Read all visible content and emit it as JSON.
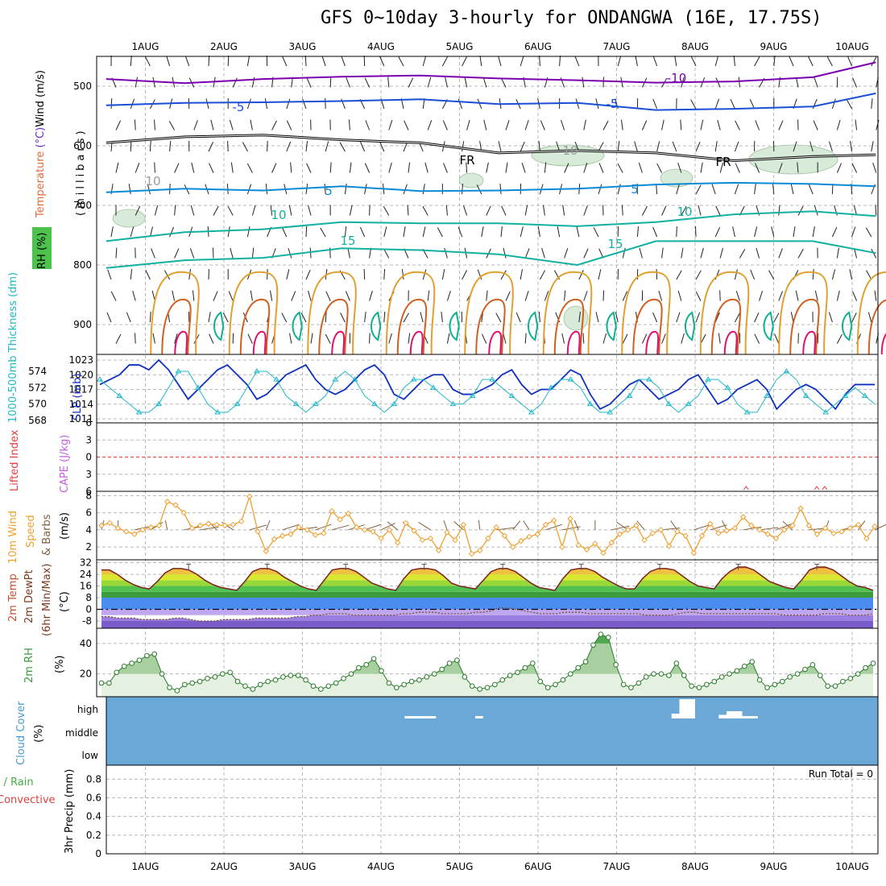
{
  "title": "GFS 0~10day 3-hourly for ONDANGWA (16E, 17.75S)",
  "colors": {
    "wind": "#000000",
    "temperature_neg": "#7a00b0",
    "temperature_blue": "#1a4fd6",
    "temperature_cyan": "#0d8ad6",
    "temperature_teal": "#12b0a0",
    "freezing": "#000000",
    "warm_orange": "#e0a030",
    "warm_dark": "#d06020",
    "hot": "#e01070",
    "slp": "#1030c0",
    "thickness": "#20b8c8",
    "lifted_index": "#e04040",
    "cape": "#c060e0",
    "wind10": "#f0a030",
    "barb10": "#806040",
    "rh2m": "#3aa03a",
    "cloud": "#6aa8d8",
    "precip": "#40b040"
  },
  "chart_data": [
    {
      "type": "line",
      "panel": "upper-air",
      "title": "GFS 0~10day 3-hourly for ONDANGWA (16E, 17.75S)",
      "x_ticks": [
        "1AUG",
        "2AUG",
        "3AUG",
        "4AUG",
        "5AUG",
        "6AUG",
        "7AUG",
        "8AUG",
        "9AUG",
        "10AUG"
      ],
      "xlim_days": [
        0.5,
        10.3
      ],
      "ylabel_parts": [
        "RH (%)",
        "Temperature (°C)",
        "Wind (m/s)"
      ],
      "ylabel_units": "(millibars)",
      "yticks": [
        500,
        600,
        700,
        800,
        900
      ],
      "ylim": [
        450,
        950
      ],
      "contour_labels": [
        "-10",
        "-5",
        "-5",
        "FR",
        "FR",
        "5",
        "5",
        "10",
        "10",
        "15",
        "15",
        "10",
        "10"
      ],
      "series": [
        {
          "name": "-10",
          "values": [
            [
              0.5,
              488
            ],
            [
              1.5,
              495
            ],
            [
              2.5,
              488
            ],
            [
              3.5,
              484
            ],
            [
              4.5,
              482
            ],
            [
              5.5,
              487
            ],
            [
              6.5,
              490
            ],
            [
              7.5,
              494
            ],
            [
              8.5,
              492
            ],
            [
              9.5,
              485
            ],
            [
              10.3,
              460
            ]
          ]
        },
        {
          "name": "-5",
          "values": [
            [
              0.5,
              532
            ],
            [
              1.5,
              528
            ],
            [
              2.5,
              527
            ],
            [
              3.5,
              525
            ],
            [
              4.5,
              522
            ],
            [
              5.5,
              530
            ],
            [
              6.5,
              528
            ],
            [
              7.5,
              540
            ],
            [
              8.5,
              538
            ],
            [
              9.5,
              534
            ],
            [
              10.3,
              512
            ]
          ]
        },
        {
          "name": "FR",
          "values": [
            [
              0.5,
              595
            ],
            [
              1.5,
              585
            ],
            [
              2.5,
              582
            ],
            [
              3.5,
              590
            ],
            [
              4.5,
              595
            ],
            [
              5.5,
              612
            ],
            [
              6.5,
              608
            ],
            [
              7.5,
              612
            ],
            [
              8.5,
              625
            ],
            [
              9.5,
              618
            ],
            [
              10.3,
              615
            ]
          ]
        },
        {
          "name": "5",
          "values": [
            [
              0.5,
              678
            ],
            [
              1.5,
              672
            ],
            [
              2.5,
              675
            ],
            [
              3.5,
              668
            ],
            [
              4.5,
              676
            ],
            [
              5.5,
              675
            ],
            [
              6.5,
              672
            ],
            [
              7.5,
              665
            ],
            [
              8.5,
              662
            ],
            [
              9.5,
              664
            ],
            [
              10.3,
              668
            ]
          ]
        },
        {
          "name": "10",
          "values": [
            [
              0.5,
              760
            ],
            [
              1.5,
              745
            ],
            [
              2.5,
              740
            ],
            [
              3.5,
              728
            ],
            [
              4.5,
              730
            ],
            [
              5.5,
              730
            ],
            [
              6.5,
              735
            ],
            [
              7.5,
              728
            ],
            [
              8.5,
              715
            ],
            [
              9.5,
              710
            ],
            [
              10.3,
              718
            ]
          ]
        },
        {
          "name": "15",
          "values": [
            [
              0.5,
              805
            ],
            [
              1.5,
              792
            ],
            [
              2.5,
              788
            ],
            [
              3.5,
              772
            ],
            [
              4.5,
              775
            ],
            [
              5.5,
              782
            ],
            [
              6.5,
              800
            ],
            [
              7.5,
              760
            ],
            [
              8.5,
              760
            ],
            [
              9.5,
              760
            ],
            [
              10.3,
              780
            ]
          ]
        }
      ]
    },
    {
      "type": "line",
      "panel": "slp-thickness",
      "ylabel_left": "1000-500mb Thickness (dm)",
      "ylabel_right": "SLP (mb)",
      "left_ticks": [
        568,
        570,
        572,
        574
      ],
      "right_ticks": [
        1011,
        1014,
        1017,
        1020,
        1023
      ],
      "series": [
        {
          "name": "SLP (mb)",
          "values": [
            1018,
            1019,
            1020,
            1022,
            1022,
            1021,
            1023,
            1021,
            1018,
            1015,
            1017,
            1019,
            1021,
            1022,
            1020,
            1018,
            1015,
            1016,
            1018,
            1020,
            1021,
            1022,
            1019,
            1017,
            1016,
            1017,
            1019,
            1021,
            1022,
            1020,
            1016,
            1015,
            1017,
            1019,
            1020,
            1020,
            1017,
            1016,
            1016,
            1017,
            1018,
            1020,
            1021,
            1018,
            1016,
            1017,
            1017,
            1019,
            1021,
            1020,
            1016,
            1013,
            1014,
            1016,
            1018,
            1019,
            1017,
            1015,
            1016,
            1017,
            1019,
            1020,
            1017,
            1014,
            1015,
            1017,
            1018,
            1019,
            1017,
            1013,
            1015,
            1017,
            1018,
            1017,
            1015,
            1013,
            1016,
            1018,
            1018,
            1018
          ]
        },
        {
          "name": "1000-500mb Thickness (dm)",
          "values": [
            573,
            572,
            571,
            570,
            569,
            569,
            570,
            572,
            574,
            574,
            572,
            570,
            569,
            569,
            570,
            572,
            574,
            574,
            573,
            571,
            570,
            569,
            570,
            571,
            573,
            574,
            573,
            571,
            570,
            569,
            570,
            572,
            573,
            573,
            572,
            571,
            570,
            570,
            571,
            573,
            573,
            572,
            571,
            570,
            569,
            570,
            572,
            573,
            573,
            572,
            570,
            569,
            569,
            570,
            571,
            573,
            573,
            572,
            570,
            569,
            570,
            571,
            573,
            573,
            572,
            570,
            569,
            569,
            571,
            573,
            574,
            573,
            571,
            570,
            569,
            570,
            571,
            572,
            571,
            570
          ]
        }
      ]
    },
    {
      "type": "line",
      "panel": "lifted-index-cape",
      "ylabel_left": "Lifted Index",
      "ylabel_right": "CAPE (J/kg)",
      "yticks": [
        -6,
        -3,
        0,
        3,
        6
      ],
      "ytick_labels": [
        "6",
        "3",
        "0",
        "3",
        "6"
      ],
      "series": [
        {
          "name": "CAPE (J/kg)",
          "values": [
            [
              8.6,
              1
            ],
            [
              9.5,
              1
            ],
            [
              9.6,
              1
            ]
          ]
        }
      ]
    },
    {
      "type": "line",
      "panel": "wind10m",
      "ylabel": "10m Wind Speed & Barbs (m/s)",
      "yticks": [
        2,
        4,
        6,
        8
      ],
      "ylim": [
        0.5,
        8.5
      ],
      "series": [
        {
          "name": "10m Wind Speed",
          "values": [
            4.5,
            4.8,
            4.2,
            3.8,
            3.5,
            4.0,
            4.3,
            4.5,
            7.3,
            6.9,
            6.0,
            4.2,
            4.5,
            4.7,
            4.6,
            4.5,
            4.6,
            5.0,
            7.9,
            3.8,
            1.5,
            2.9,
            3.3,
            3.5,
            4.3,
            4.0,
            3.4,
            3.6,
            6.2,
            5.2,
            5.9,
            4.3,
            4.0,
            3.8,
            3.0,
            4.0,
            2.5,
            4.8,
            3.9,
            2.8,
            3.0,
            1.6,
            3.7,
            2.8,
            4.6,
            1.2,
            1.6,
            3.0,
            4.3,
            3.3,
            2.0,
            2.7,
            3.2,
            3.5,
            4.6,
            5.1,
            2.0,
            5.3,
            2.2,
            1.7,
            2.4,
            1.3,
            2.5,
            3.5,
            4.0,
            4.5,
            2.8,
            3.6,
            4.0,
            2.1,
            3.8,
            3.3,
            1.3,
            3.3,
            4.7,
            3.6,
            3.9,
            4.2,
            5.5,
            4.5,
            4.0,
            3.5,
            3.0,
            4.0,
            4.5,
            6.5,
            4.5,
            3.5,
            4.2,
            3.6,
            3.8,
            4.2,
            4.6,
            3.0,
            4.4
          ]
        }
      ]
    },
    {
      "type": "area",
      "panel": "temp2m",
      "ylabel": "2m Temp 2m DewPt (6hr Min/Max) (°C)",
      "yticks": [
        -8,
        0,
        8,
        16,
        24,
        32
      ],
      "yticks_shown": [
        "32",
        "24",
        "16",
        "8",
        "0",
        "-8"
      ],
      "ylim": [
        -13,
        34
      ],
      "series": [
        {
          "name": "2m Temp",
          "values": [
            27,
            27,
            24,
            20,
            17,
            15,
            14,
            19,
            25,
            28,
            28,
            27,
            24,
            20,
            17,
            15,
            14,
            13,
            19,
            26,
            28,
            28,
            26,
            22,
            19,
            16,
            14,
            13,
            20,
            27,
            28,
            28,
            26,
            22,
            18,
            16,
            14,
            13,
            21,
            27,
            28,
            28,
            27,
            23,
            18,
            16,
            15,
            14,
            20,
            26,
            28,
            28,
            26,
            22,
            18,
            15,
            14,
            13,
            21,
            27,
            28,
            28,
            26,
            22,
            19,
            16,
            14,
            14,
            21,
            26,
            28,
            28,
            27,
            23,
            19,
            16,
            15,
            14,
            21,
            26,
            29,
            29,
            27,
            23,
            19,
            17,
            15,
            14,
            20,
            27,
            29,
            29,
            27,
            23,
            19,
            16,
            15,
            13
          ]
        },
        {
          "name": "2m DewPt",
          "values": [
            -5,
            -5,
            -6,
            -6,
            -6,
            -7,
            -7,
            -7,
            -7,
            -6,
            -6,
            -7,
            -8,
            -8,
            -8,
            -7,
            -7,
            -7,
            -7,
            -6,
            -6,
            -6,
            -6,
            -6,
            -5,
            -5,
            -4,
            -4,
            -3,
            -3,
            -3,
            -4,
            -4,
            -4,
            -4,
            -4,
            -4,
            -3,
            -3,
            -2,
            -2,
            -2,
            -3,
            -3,
            -3,
            -3,
            -2,
            -2,
            -1,
            1,
            1,
            0,
            -1,
            -2,
            -3,
            -3,
            -3,
            -2,
            -2,
            -2,
            -3,
            -3,
            -3,
            -3,
            -3,
            -3,
            -3,
            -4,
            -4,
            -4,
            -4,
            -3,
            -2,
            -2,
            -3,
            -3,
            -3,
            -3,
            -3,
            -3,
            -3,
            -3,
            -3,
            -3,
            -4,
            -4,
            -4,
            -4,
            -4,
            -3,
            -3,
            -3,
            -4,
            -4,
            -4,
            -3
          ]
        }
      ]
    },
    {
      "type": "area",
      "panel": "rh2m",
      "ylabel": "2m RH (%)",
      "yticks": [
        20,
        40
      ],
      "ylim": [
        5,
        50
      ],
      "series": [
        {
          "name": "2m RH",
          "values": [
            14,
            14,
            21,
            25,
            27,
            29,
            32,
            33,
            20,
            11,
            9,
            13,
            14,
            15,
            17,
            18,
            20,
            21,
            15,
            12,
            10,
            13,
            15,
            16,
            18,
            19,
            19,
            16,
            12,
            10,
            12,
            14,
            17,
            20,
            24,
            26,
            30,
            22,
            14,
            11,
            13,
            15,
            16,
            18,
            20,
            23,
            27,
            29,
            18,
            12,
            10,
            11,
            13,
            16,
            19,
            21,
            24,
            27,
            15,
            11,
            13,
            16,
            20,
            24,
            28,
            39,
            46,
            44,
            26,
            13,
            11,
            14,
            18,
            20,
            20,
            19,
            27,
            19,
            12,
            11,
            13,
            15,
            18,
            20,
            22,
            25,
            28,
            16,
            11,
            13,
            15,
            18,
            20,
            23,
            26,
            19,
            12,
            12,
            15,
            17,
            20,
            24,
            27
          ]
        }
      ]
    },
    {
      "type": "bar",
      "panel": "cloud-cover",
      "ylabel": "Cloud Cover (%)",
      "yticks": [
        "low",
        "middle",
        "high"
      ],
      "series": [
        {
          "name": "high",
          "values": [
            [
              4.3,
              4.7,
              2
            ],
            [
              5.2,
              5.3,
              2
            ],
            [
              7.7,
              7.8,
              4
            ],
            [
              7.8,
              8.0,
              16
            ],
            [
              8.3,
              8.4,
              3
            ],
            [
              8.4,
              8.6,
              6
            ],
            [
              8.6,
              8.8,
              2
            ]
          ]
        }
      ]
    },
    {
      "type": "bar",
      "panel": "precip",
      "ylabel": "3hr Precip (mm)",
      "ylabel_side": [
        "Total / Rain",
        "Convective"
      ],
      "yticks": [
        0,
        0.2,
        0.4,
        0.6,
        0.8
      ],
      "ylim": [
        0,
        0.95
      ],
      "annotation": "Run Total = 0",
      "series": [
        {
          "name": "Total / Rain",
          "values": []
        },
        {
          "name": "Convective",
          "values": []
        }
      ]
    }
  ]
}
